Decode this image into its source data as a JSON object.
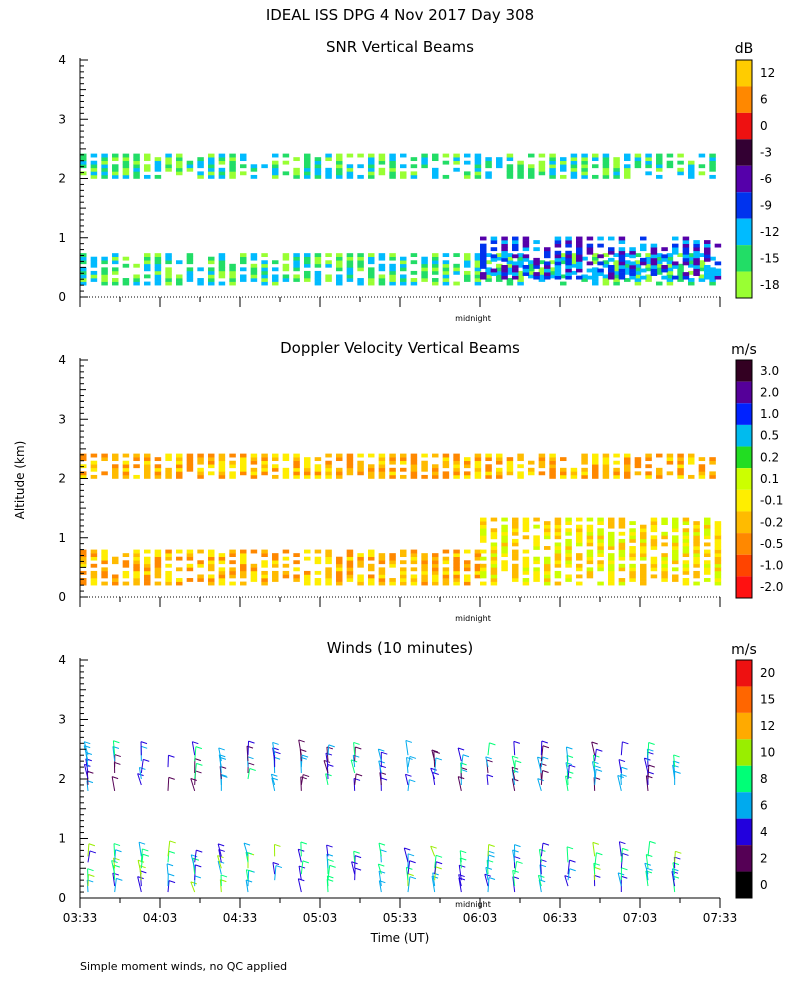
{
  "title": "IDEAL ISS DPG    4 Nov 2017 Day 308",
  "y_axis_label": "Altitude (km)",
  "x_axis_label": "Time (UT)",
  "midnight_label": "midnight",
  "footnote": "Simple moment winds, no QC applied",
  "colors": {
    "snr_scale": [
      "#99ff33",
      "#22dd66",
      "#00bbff",
      "#0033ee",
      "#5500aa",
      "#330033",
      "#ee1111",
      "#ff8800",
      "#ffcc00"
    ],
    "vel_scale": [
      "#ff1111",
      "#ff4400",
      "#ff8800",
      "#ffbb00",
      "#ffee00",
      "#ccff00",
      "#22dd22",
      "#00bbee",
      "#0022ff",
      "#550099",
      "#330022"
    ],
    "wind_scale": [
      "#000000",
      "#550055",
      "#2200dd",
      "#00aaee",
      "#00ff77",
      "#99ee00",
      "#ffaa00",
      "#ff6600",
      "#ee1111"
    ]
  },
  "chart_data": [
    {
      "type": "heatmap",
      "title": "SNR Vertical Beams",
      "units": "dB",
      "xlabel": "",
      "ylabel": "Altitude (km)",
      "x_ticks": [
        "03:33",
        "04:03",
        "04:33",
        "05:03",
        "05:33",
        "06:03",
        "06:33",
        "07:03",
        "07:33"
      ],
      "ylim": [
        0,
        4
      ],
      "y_ticks": [
        "0",
        "1",
        "2",
        "3",
        "4"
      ],
      "colorbar_labels": [
        "12",
        "6",
        "0",
        "-3",
        "-6",
        "-9",
        "-12",
        "-15",
        "-18"
      ],
      "midnight_marker": "00:00",
      "layers": [
        {
          "start": "03:33",
          "end": "07:33",
          "altitude_km": [
            2.0,
            2.4
          ],
          "snr_db": -16
        },
        {
          "start": "03:33",
          "end": "07:33",
          "altitude_km": [
            0.2,
            0.7
          ],
          "snr_db": -13
        },
        {
          "start": "06:03",
          "end": "07:33",
          "altitude_km": [
            0.3,
            1.0
          ],
          "snr_db": -7
        }
      ]
    },
    {
      "type": "heatmap",
      "title": "Doppler Velocity Vertical Beams",
      "units": "m/s",
      "xlabel": "",
      "ylabel": "Altitude (km)",
      "x_ticks": [
        "03:33",
        "04:03",
        "04:33",
        "05:03",
        "05:33",
        "06:03",
        "06:33",
        "07:03",
        "07:33"
      ],
      "ylim": [
        0,
        4
      ],
      "y_ticks": [
        "0",
        "1",
        "2",
        "3",
        "4"
      ],
      "colorbar_labels": [
        "3.0",
        "2.0",
        "1.0",
        "0.5",
        "0.2",
        "0.1",
        "-0.1",
        "-0.2",
        "-0.5",
        "-1.0",
        "-2.0"
      ],
      "midnight_marker": "00:00",
      "layers": [
        {
          "start": "03:33",
          "end": "07:33",
          "altitude_km": [
            2.0,
            2.4
          ],
          "velocity_ms": -0.3
        },
        {
          "start": "03:33",
          "end": "06:03",
          "altitude_km": [
            0.2,
            0.8
          ],
          "velocity_ms": -0.5
        },
        {
          "start": "06:03",
          "end": "07:33",
          "altitude_km": [
            0.2,
            1.3
          ],
          "velocity_ms": -0.1
        }
      ]
    },
    {
      "type": "scatter",
      "title": "Winds (10 minutes)",
      "units": "m/s",
      "xlabel": "Time (UT)",
      "ylabel": "Altitude (km)",
      "x_ticks": [
        "03:33",
        "04:03",
        "04:33",
        "05:03",
        "05:33",
        "06:03",
        "06:33",
        "07:03",
        "07:33"
      ],
      "ylim": [
        0,
        4
      ],
      "y_ticks": [
        "0",
        "1",
        "2",
        "3",
        "4"
      ],
      "colorbar_labels": [
        "20",
        "15",
        "12",
        "10",
        "8",
        "6",
        "4",
        "2",
        "0"
      ],
      "midnight_marker": "00:00",
      "profile_times": [
        "03:36",
        "03:46",
        "03:56",
        "04:06",
        "04:16",
        "04:26",
        "04:36",
        "04:46",
        "04:56",
        "05:06",
        "05:16",
        "05:26",
        "05:36",
        "05:46",
        "05:56",
        "06:06",
        "06:16",
        "06:26",
        "06:36",
        "06:46",
        "06:56",
        "07:06",
        "07:16"
      ],
      "series": [
        {
          "layer": "boundary layer",
          "altitude_km": [
            0.1,
            0.7
          ],
          "speed_ms": 8
        },
        {
          "layer": "upper layer",
          "altitude_km": [
            1.8,
            2.5
          ],
          "speed_ms": 6
        }
      ]
    }
  ]
}
